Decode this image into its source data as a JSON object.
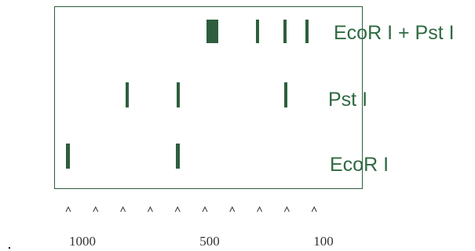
{
  "lanes": [
    {
      "label": "EcoR I + Pst I"
    },
    {
      "label": "Pst I"
    },
    {
      "label": "EcoR I"
    }
  ],
  "scale": {
    "labels": [
      "1000",
      "500",
      "100"
    ]
  }
}
